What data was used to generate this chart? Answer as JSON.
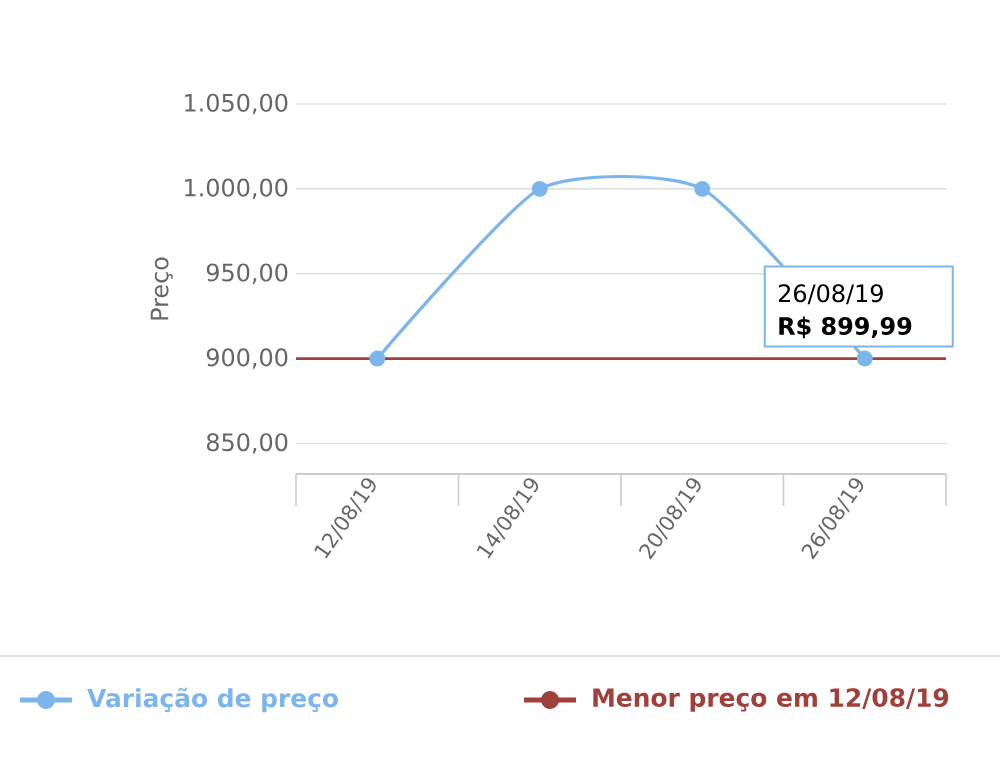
{
  "chart_data": {
    "type": "line",
    "ylabel": "Preço",
    "categories": [
      "12/08/19",
      "14/08/19",
      "20/08/19",
      "26/08/19"
    ],
    "series": [
      {
        "name": "Variação de preço",
        "color": "#7cb5ec",
        "values": [
          899.99,
          1000,
          1000,
          899.99
        ]
      }
    ],
    "ref_lines": [
      {
        "axis": "y",
        "value": 899.99,
        "label": "Menor preço em 12/08/19",
        "color": "#a0403a"
      }
    ],
    "ylim": [
      832,
      1050
    ],
    "yticks": [
      {
        "value": 850,
        "label": "850,00"
      },
      {
        "value": 900,
        "label": "900,00"
      },
      {
        "value": 950,
        "label": "950,00"
      },
      {
        "value": 1000,
        "label": "1.000,00"
      },
      {
        "value": 1050,
        "label": "1.050,00"
      }
    ],
    "annotations": [
      {
        "text": "26/08/19",
        "x": "26/08/19",
        "y": 899.99
      },
      {
        "text": "R$ 899,99",
        "x": "26/08/19",
        "y": 899.99
      }
    ],
    "grid": "y",
    "marker": "circle",
    "line_style": "solid",
    "legend": "bottom"
  }
}
